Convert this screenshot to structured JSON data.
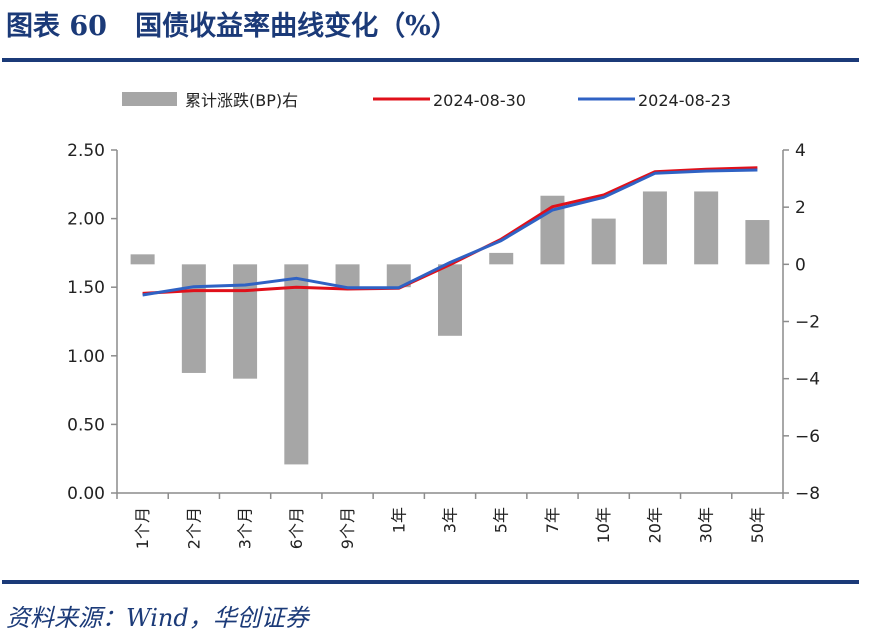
{
  "header": {
    "title": "图表 60   国债收益率曲线变化（%）"
  },
  "footer": {
    "source": "资料来源：Wind，华创证券"
  },
  "chart_data": {
    "type": "bar+line",
    "categories": [
      "1个月",
      "2个月",
      "3个月",
      "6个月",
      "9个月",
      "1年",
      "3年",
      "5年",
      "7年",
      "10年",
      "20年",
      "30年",
      "50年"
    ],
    "series": [
      {
        "name": "累计涨跌(BP)右",
        "type": "bar",
        "axis": "right",
        "color": "#a6a6a6",
        "values": [
          0.35,
          -3.8,
          -4.0,
          -7.0,
          -0.8,
          -0.8,
          -2.5,
          0.4,
          2.4,
          1.6,
          2.55,
          2.55,
          1.55
        ]
      },
      {
        "name": "2024-08-30",
        "type": "line",
        "axis": "left",
        "color": "#e0101a",
        "values": [
          1.455,
          1.475,
          1.475,
          1.5,
          1.487,
          1.492,
          1.665,
          1.85,
          2.087,
          2.172,
          2.342,
          2.36,
          2.371
        ]
      },
      {
        "name": "2024-08-23",
        "type": "line",
        "axis": "left",
        "color": "#2f62c4",
        "values": [
          1.443,
          1.504,
          1.516,
          1.565,
          1.496,
          1.496,
          1.68,
          1.84,
          2.063,
          2.155,
          2.33,
          2.347,
          2.354
        ]
      }
    ],
    "left_axis": {
      "range": [
        0,
        2.5
      ],
      "ticks": [
        "0.00",
        "0.50",
        "1.00",
        "1.50",
        "2.00",
        "2.50"
      ]
    },
    "right_axis": {
      "range": [
        -8,
        4
      ],
      "ticks": [
        "-8",
        "-6",
        "-4",
        "-2",
        "0",
        "2",
        "4"
      ]
    },
    "grid": false,
    "legend_position": "top"
  }
}
